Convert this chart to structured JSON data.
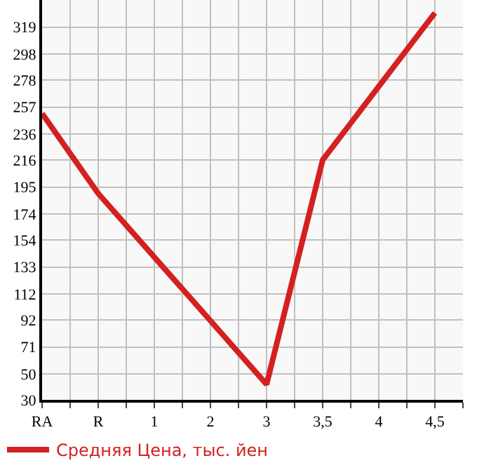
{
  "chart_data": {
    "type": "line",
    "categories": [
      "RA",
      "R",
      "1",
      "2",
      "3",
      "3,5",
      "4",
      "4,5"
    ],
    "series": [
      {
        "name": "Средняя Цена, тыс. йен",
        "color": "#d42020",
        "values": [
          252,
          190,
          null,
          null,
          42,
          216,
          null,
          330
        ]
      }
    ],
    "ylim": [
      30,
      340
    ],
    "yticks": [
      30,
      50,
      71,
      92,
      112,
      133,
      154,
      174,
      195,
      216,
      236,
      257,
      278,
      298,
      319
    ],
    "grid": true,
    "legend": "bottom",
    "marker": "none",
    "line_style": "solid"
  }
}
